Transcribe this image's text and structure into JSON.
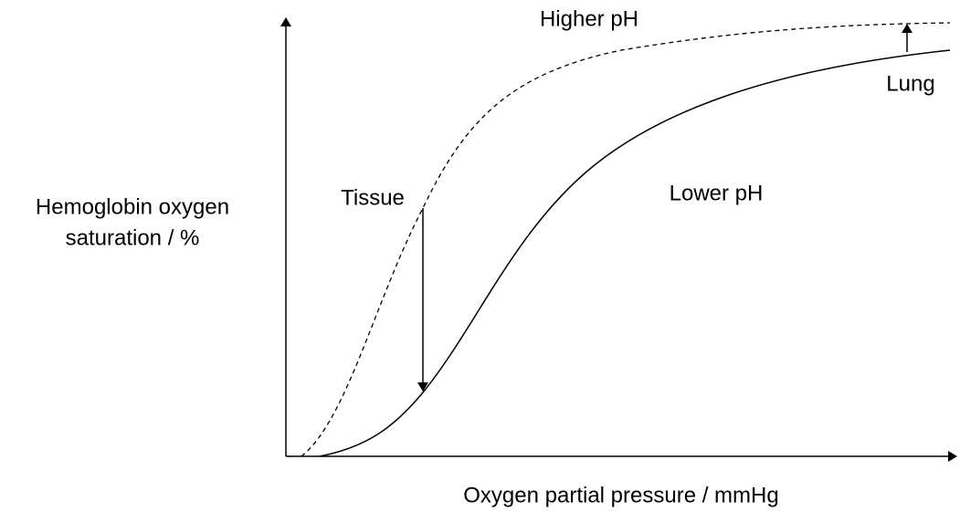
{
  "y_axis_label": [
    "Hemoglobin oxygen",
    "saturation / %"
  ],
  "x_axis_label": "Oxygen partial pressure / mmHg",
  "curves": [
    {
      "label": "Higher pH"
    },
    {
      "label": "Lower pH"
    }
  ],
  "annotations": [
    {
      "label": "Tissue"
    },
    {
      "label": "Lung"
    }
  ]
}
